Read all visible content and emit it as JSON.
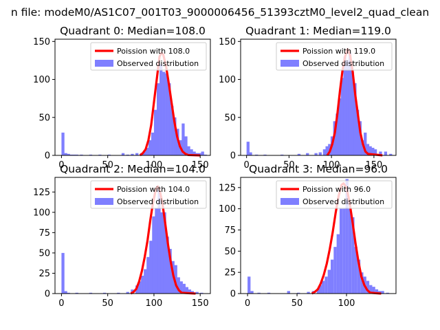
{
  "suptitle": "n file: modeM0/AS1C07_001T03_9000006456_51393cztM0_level2_quad_clean",
  "colors": {
    "observed": "#7f7fff",
    "poisson": "#ff0000",
    "axes": "#000000"
  },
  "chart_data": [
    {
      "type": "bar",
      "title": "Quadrant 0: Median=108.0",
      "median": 108.0,
      "legend": [
        "Poission with 108.0",
        "Observed distribution"
      ],
      "legend_position": "upper-right",
      "xlim": [
        -7,
        161
      ],
      "ylim": [
        0,
        153
      ],
      "xticks": [
        0,
        50,
        100,
        150
      ],
      "yticks": [
        0,
        50,
        100,
        150
      ],
      "bin_width": 3.2,
      "observed": [
        [
          0,
          30
        ],
        [
          3,
          3
        ],
        [
          6,
          2
        ],
        [
          9,
          1
        ],
        [
          12,
          1
        ],
        [
          15,
          1
        ],
        [
          20,
          1
        ],
        [
          30,
          1
        ],
        [
          40,
          1
        ],
        [
          50,
          1
        ],
        [
          65,
          3
        ],
        [
          70,
          1
        ],
        [
          75,
          2
        ],
        [
          80,
          3
        ],
        [
          85,
          3
        ],
        [
          88,
          5
        ],
        [
          91,
          10
        ],
        [
          94,
          20
        ],
        [
          97,
          30
        ],
        [
          100,
          60
        ],
        [
          103,
          95
        ],
        [
          106,
          120
        ],
        [
          109,
          110
        ],
        [
          112,
          108
        ],
        [
          115,
          95
        ],
        [
          118,
          65
        ],
        [
          121,
          50
        ],
        [
          124,
          35
        ],
        [
          127,
          20
        ],
        [
          130,
          42
        ],
        [
          133,
          25
        ],
        [
          136,
          12
        ],
        [
          139,
          8
        ],
        [
          142,
          5
        ],
        [
          145,
          3
        ],
        [
          148,
          3
        ],
        [
          151,
          5
        ],
        [
          154,
          1
        ]
      ],
      "poisson_curve": [
        [
          85,
          0
        ],
        [
          88,
          3
        ],
        [
          91,
          8
        ],
        [
          94,
          20
        ],
        [
          97,
          40
        ],
        [
          100,
          70
        ],
        [
          103,
          100
        ],
        [
          106,
          130
        ],
        [
          108,
          135
        ],
        [
          110,
          133
        ],
        [
          113,
          118
        ],
        [
          116,
          95
        ],
        [
          119,
          70
        ],
        [
          122,
          45
        ],
        [
          125,
          25
        ],
        [
          128,
          12
        ],
        [
          131,
          5
        ],
        [
          134,
          2
        ],
        [
          137,
          0.5
        ],
        [
          150,
          0
        ]
      ]
    },
    {
      "type": "bar",
      "title": "Quadrant 1: Median=119.0",
      "median": 119.0,
      "legend": [
        "Poission with 119.0",
        "Observed distribution"
      ],
      "legend_position": "upper-right",
      "xlim": [
        -7,
        176
      ],
      "ylim": [
        0,
        153
      ],
      "xticks": [
        0,
        50,
        100,
        150
      ],
      "yticks": [
        0,
        50,
        100,
        150
      ],
      "bin_width": 3.5,
      "observed": [
        [
          0,
          18
        ],
        [
          3,
          4
        ],
        [
          10,
          1
        ],
        [
          20,
          1
        ],
        [
          40,
          1
        ],
        [
          60,
          2
        ],
        [
          70,
          3
        ],
        [
          80,
          3
        ],
        [
          85,
          4
        ],
        [
          90,
          8
        ],
        [
          93,
          12
        ],
        [
          96,
          15
        ],
        [
          99,
          25
        ],
        [
          102,
          45
        ],
        [
          105,
          55
        ],
        [
          108,
          75
        ],
        [
          111,
          102
        ],
        [
          114,
          130
        ],
        [
          117,
          125
        ],
        [
          120,
          135
        ],
        [
          123,
          110
        ],
        [
          126,
          95
        ],
        [
          129,
          60
        ],
        [
          132,
          45
        ],
        [
          135,
          20
        ],
        [
          138,
          30
        ],
        [
          141,
          15
        ],
        [
          144,
          12
        ],
        [
          147,
          10
        ],
        [
          150,
          8
        ],
        [
          156,
          5
        ],
        [
          162,
          5
        ],
        [
          168,
          2
        ]
      ],
      "poisson_curve": [
        [
          95,
          0
        ],
        [
          98,
          5
        ],
        [
          101,
          15
        ],
        [
          104,
          30
        ],
        [
          107,
          55
        ],
        [
          110,
          85
        ],
        [
          113,
          112
        ],
        [
          116,
          130
        ],
        [
          119,
          140
        ],
        [
          122,
          132
        ],
        [
          125,
          110
        ],
        [
          128,
          80
        ],
        [
          131,
          55
        ],
        [
          134,
          30
        ],
        [
          137,
          15
        ],
        [
          140,
          5
        ],
        [
          143,
          2
        ],
        [
          160,
          0
        ]
      ]
    },
    {
      "type": "bar",
      "title": "Quadrant 2: Median=104.0",
      "median": 104.0,
      "legend": [
        "Poission with 104.0",
        "Observed distribution"
      ],
      "legend_position": "upper-right",
      "xlim": [
        -7,
        161
      ],
      "ylim": [
        0,
        143
      ],
      "xticks": [
        0,
        50,
        100,
        150
      ],
      "yticks": [
        0,
        25,
        50,
        75,
        100,
        125
      ],
      "bin_width": 3.2,
      "observed": [
        [
          0,
          50
        ],
        [
          3,
          3
        ],
        [
          6,
          1
        ],
        [
          15,
          1
        ],
        [
          30,
          1
        ],
        [
          45,
          1
        ],
        [
          60,
          1
        ],
        [
          70,
          2
        ],
        [
          75,
          5
        ],
        [
          80,
          10
        ],
        [
          83,
          15
        ],
        [
          86,
          22
        ],
        [
          89,
          30
        ],
        [
          92,
          45
        ],
        [
          95,
          65
        ],
        [
          98,
          95
        ],
        [
          101,
          105
        ],
        [
          104,
          130
        ],
        [
          107,
          100
        ],
        [
          110,
          100
        ],
        [
          113,
          70
        ],
        [
          116,
          55
        ],
        [
          119,
          40
        ],
        [
          122,
          35
        ],
        [
          125,
          20
        ],
        [
          128,
          15
        ],
        [
          131,
          12
        ],
        [
          134,
          8
        ],
        [
          137,
          5
        ],
        [
          140,
          3
        ],
        [
          145,
          2
        ],
        [
          150,
          1
        ]
      ],
      "poisson_curve": [
        [
          75,
          0
        ],
        [
          78,
          2
        ],
        [
          81,
          6
        ],
        [
          84,
          15
        ],
        [
          87,
          28
        ],
        [
          90,
          45
        ],
        [
          93,
          65
        ],
        [
          96,
          90
        ],
        [
          99,
          112
        ],
        [
          102,
          128
        ],
        [
          104,
          132
        ],
        [
          106,
          128
        ],
        [
          109,
          112
        ],
        [
          112,
          88
        ],
        [
          115,
          62
        ],
        [
          118,
          40
        ],
        [
          121,
          22
        ],
        [
          124,
          10
        ],
        [
          127,
          4
        ],
        [
          130,
          1
        ],
        [
          145,
          0
        ]
      ]
    },
    {
      "type": "bar",
      "title": "Quadrant 3: Median=96.0",
      "median": 96.0,
      "legend": [
        "Poission with 96.0",
        "Observed distribution"
      ],
      "legend_position": "upper-right",
      "xlim": [
        -7,
        150
      ],
      "ylim": [
        0,
        137
      ],
      "xticks": [
        0,
        50,
        100
      ],
      "yticks": [
        0,
        25,
        50,
        75,
        100,
        125
      ],
      "bin_width": 3,
      "observed": [
        [
          0,
          20
        ],
        [
          3,
          3
        ],
        [
          10,
          1
        ],
        [
          20,
          1
        ],
        [
          40,
          3
        ],
        [
          50,
          1
        ],
        [
          60,
          2
        ],
        [
          65,
          3
        ],
        [
          70,
          6
        ],
        [
          72,
          10
        ],
        [
          75,
          15
        ],
        [
          78,
          20
        ],
        [
          81,
          28
        ],
        [
          84,
          40
        ],
        [
          87,
          55
        ],
        [
          90,
          70
        ],
        [
          93,
          100
        ],
        [
          96,
          100
        ],
        [
          99,
          135
        ],
        [
          102,
          100
        ],
        [
          105,
          90
        ],
        [
          108,
          55
        ],
        [
          111,
          40
        ],
        [
          114,
          25
        ],
        [
          117,
          20
        ],
        [
          120,
          15
        ],
        [
          123,
          10
        ],
        [
          126,
          8
        ],
        [
          129,
          5
        ],
        [
          132,
          3
        ],
        [
          135,
          3
        ],
        [
          140,
          1
        ]
      ],
      "poisson_curve": [
        [
          65,
          0
        ],
        [
          68,
          2
        ],
        [
          71,
          5
        ],
        [
          74,
          12
        ],
        [
          77,
          22
        ],
        [
          80,
          35
        ],
        [
          83,
          52
        ],
        [
          86,
          72
        ],
        [
          89,
          95
        ],
        [
          92,
          115
        ],
        [
          95,
          128
        ],
        [
          97,
          130
        ],
        [
          100,
          125
        ],
        [
          103,
          108
        ],
        [
          106,
          85
        ],
        [
          109,
          60
        ],
        [
          112,
          38
        ],
        [
          115,
          20
        ],
        [
          118,
          10
        ],
        [
          121,
          4
        ],
        [
          124,
          1
        ],
        [
          135,
          0
        ]
      ]
    }
  ]
}
